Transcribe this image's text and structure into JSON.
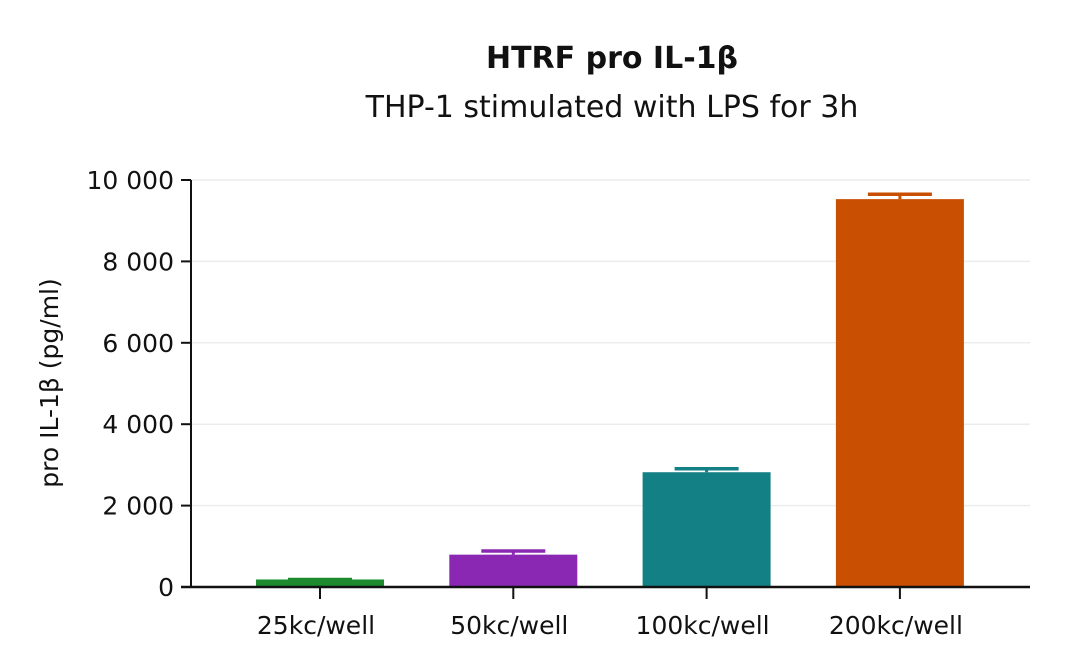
{
  "chart_data": {
    "type": "bar",
    "title": "HTRF pro IL-1β",
    "subtitle": "THP-1 stimulated with LPS for 3h",
    "xlabel": "",
    "ylabel": "pro IL-1β (pg/ml)",
    "ylim": [
      0,
      10000
    ],
    "yticks": [
      0,
      2000,
      4000,
      6000,
      8000,
      10000
    ],
    "ytick_labels": [
      "0",
      "2 000",
      "4 000",
      "6 000",
      "8 000",
      "10 000"
    ],
    "grid": "horizontal",
    "categories": [
      "25kc/well",
      "50kc/well",
      "100kc/well",
      "200kc/well"
    ],
    "values": [
      185,
      795,
      2820,
      9530
    ],
    "error_upper": [
      185,
      885,
      2905,
      9650
    ],
    "colors": [
      "#1e8a2e",
      "#8a28b4",
      "#138086",
      "#c94f03"
    ]
  }
}
